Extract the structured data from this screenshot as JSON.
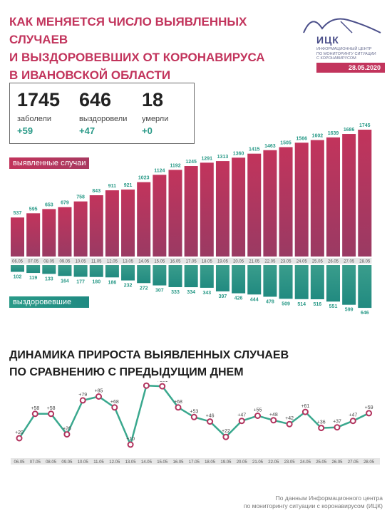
{
  "header": {
    "title_lines": [
      "КАК МЕНЯЕТСЯ ЧИСЛО ВЫЯВЛЕННЫХ СЛУЧАЕВ",
      "И ВЫЗДОРОВЕВШИХ ОТ КОРОНАВИРУСА",
      "В ИВАНОВСКОЙ ОБЛАСТИ"
    ],
    "logo_name": "ИЦК",
    "logo_sub_lines": [
      "Информационный центр",
      "по мониторингу ситуации",
      "с коронавирусом"
    ],
    "date": "28.05.2020"
  },
  "stats": [
    {
      "value": "1745",
      "label": "заболели",
      "delta": "+59"
    },
    {
      "value": "646",
      "label": "выздоровели",
      "delta": "+47"
    },
    {
      "value": "18",
      "label": "умерли",
      "delta": "+0"
    }
  ],
  "tags": {
    "cases": "выявленные случаи",
    "recovered": "выздоровевшие"
  },
  "section2_title_lines": [
    "ДИНАМИКА ПРИРОСТА ВЫЯВЛЕННЫХ СЛУЧАЕВ",
    "ПО СРАВНЕНИЮ С ПРЕДЫДУЩИМ ДНЕМ"
  ],
  "footer_lines": [
    "По данным Информационного центра",
    "по мониторингу ситуации с коронавирусом (ИЦК)"
  ],
  "colors": {
    "red": "#c2345c",
    "red_dark": "#9a3a63",
    "teal": "#2a9a88",
    "line": "#3aa88e",
    "marker": "#b2335e",
    "axis_band": "#e6e6e6"
  },
  "chart_data": [
    {
      "type": "bar",
      "categories": [
        "06.05",
        "07.05",
        "08.05",
        "09.05",
        "10.05",
        "11.05",
        "12.05",
        "13.05",
        "14.05",
        "15.05",
        "16.05",
        "17.05",
        "18.05",
        "19.05",
        "20.05",
        "21.05",
        "22.05",
        "23.05",
        "24.05",
        "25.05",
        "26.05",
        "27.05",
        "28.05"
      ],
      "series": [
        {
          "name": "выявленные случаи",
          "values": [
            537,
            595,
            653,
            679,
            758,
            843,
            911,
            921,
            1023,
            1124,
            1192,
            1245,
            1291,
            1313,
            1360,
            1415,
            1463,
            1505,
            1566,
            1602,
            1639,
            1686,
            1745
          ]
        },
        {
          "name": "выздоровевшие",
          "values": [
            102,
            119,
            133,
            164,
            177,
            180,
            186,
            232,
            272,
            307,
            333,
            334,
            343,
            397,
            426,
            444,
            478,
            509,
            514,
            516,
            551,
            599,
            646
          ]
        }
      ]
    },
    {
      "type": "line",
      "categories": [
        "06.05",
        "07.05",
        "08.05",
        "09.05",
        "10.05",
        "11.05",
        "12.05",
        "13.05",
        "14.05",
        "15.05",
        "16.05",
        "17.05",
        "18.05",
        "19.05",
        "20.05",
        "21.05",
        "22.05",
        "23.05",
        "24.05",
        "25.05",
        "26.05",
        "27.05",
        "28.05"
      ],
      "values": [
        20,
        58,
        58,
        26,
        79,
        85,
        68,
        10,
        102,
        101,
        68,
        53,
        46,
        22,
        47,
        55,
        48,
        42,
        61,
        36,
        37,
        47,
        59
      ],
      "labels": [
        "+20",
        "+58",
        "+58",
        "+26",
        "+79",
        "+85",
        "+68",
        "+10",
        "+102",
        "+101",
        "+68",
        "+53",
        "+46",
        "+22",
        "+47",
        "+55",
        "+48",
        "+42",
        "+61",
        "+36",
        "+37",
        "+47",
        "+59"
      ]
    }
  ]
}
